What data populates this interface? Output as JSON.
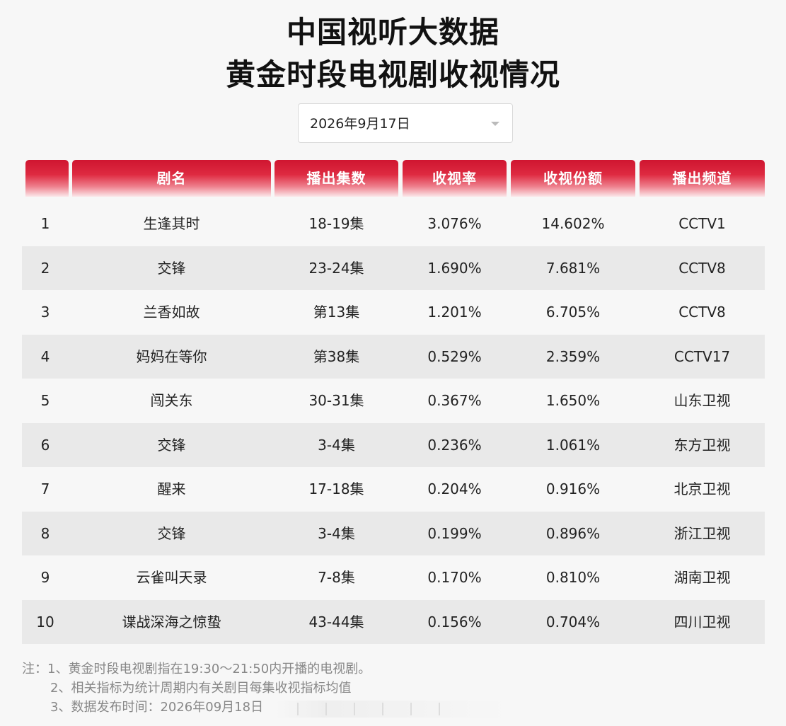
{
  "title": {
    "line1": "中国视听大数据",
    "line2": "黄金时段电视剧收视情况"
  },
  "date_select": {
    "value": "2026年9月17日"
  },
  "table": {
    "headers": [
      "",
      "剧名",
      "播出集数",
      "收视率",
      "收视份额",
      "播出频道"
    ],
    "rows": [
      {
        "rank": "1",
        "name": "生逢其时",
        "episodes": "18-19集",
        "rating": "3.076%",
        "share": "14.602%",
        "channel": "CCTV1"
      },
      {
        "rank": "2",
        "name": "交锋",
        "episodes": "23-24集",
        "rating": "1.690%",
        "share": "7.681%",
        "channel": "CCTV8"
      },
      {
        "rank": "3",
        "name": "兰香如故",
        "episodes": "第13集",
        "rating": "1.201%",
        "share": "6.705%",
        "channel": "CCTV8"
      },
      {
        "rank": "4",
        "name": "妈妈在等你",
        "episodes": "第38集",
        "rating": "0.529%",
        "share": "2.359%",
        "channel": "CCTV17"
      },
      {
        "rank": "5",
        "name": "闯关东",
        "episodes": "30-31集",
        "rating": "0.367%",
        "share": "1.650%",
        "channel": "山东卫视"
      },
      {
        "rank": "6",
        "name": "交锋",
        "episodes": "3-4集",
        "rating": "0.236%",
        "share": "1.061%",
        "channel": "东方卫视"
      },
      {
        "rank": "7",
        "name": "醒来",
        "episodes": "17-18集",
        "rating": "0.204%",
        "share": "0.916%",
        "channel": "北京卫视"
      },
      {
        "rank": "8",
        "name": "交锋",
        "episodes": "3-4集",
        "rating": "0.199%",
        "share": "0.896%",
        "channel": "浙江卫视"
      },
      {
        "rank": "9",
        "name": "云雀叫天录",
        "episodes": "7-8集",
        "rating": "0.170%",
        "share": "0.810%",
        "channel": "湖南卫视"
      },
      {
        "rank": "10",
        "name": "谍战深海之惊蛰",
        "episodes": "43-44集",
        "rating": "0.156%",
        "share": "0.704%",
        "channel": "四川卫视"
      }
    ]
  },
  "notes": [
    "注：1、黄金时段电视剧指在19:30～21:50内开播的电视剧。",
    "2、相关指标为统计周期内有关剧目每集收视指标均值",
    "3、数据发布时间：2026年09月18日"
  ]
}
